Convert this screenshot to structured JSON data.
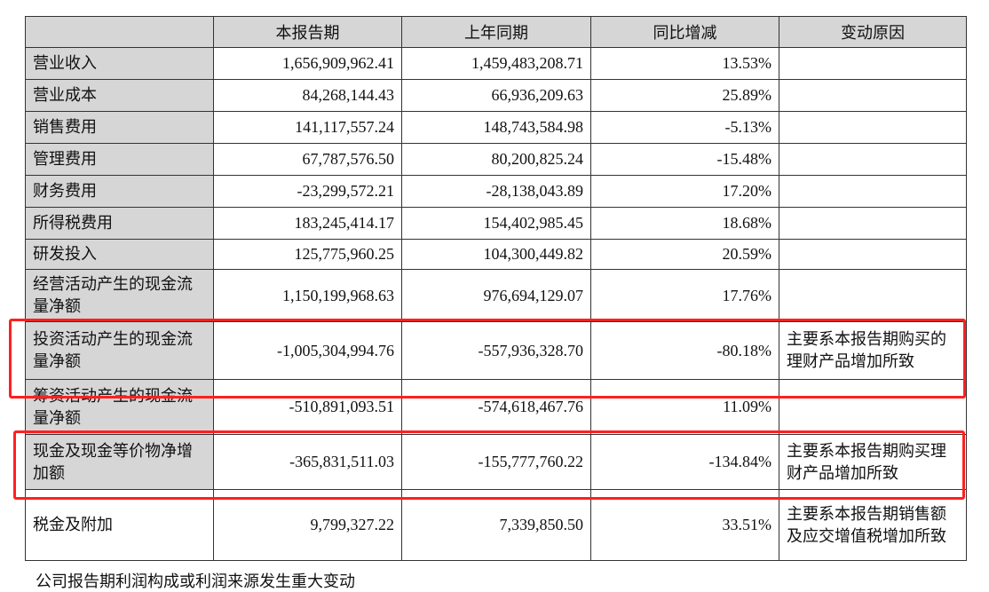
{
  "header": {
    "columns": [
      "",
      "本报告期",
      "上年同期",
      "同比增减",
      "变动原因"
    ]
  },
  "rows": [
    {
      "label": "营业收入",
      "current": "1,656,909,962.41",
      "previous": "1,459,483,208.71",
      "change": "13.53%",
      "reason": ""
    },
    {
      "label": "营业成本",
      "current": "84,268,144.43",
      "previous": "66,936,209.63",
      "change": "25.89%",
      "reason": ""
    },
    {
      "label": "销售费用",
      "current": "141,117,557.24",
      "previous": "148,743,584.98",
      "change": "-5.13%",
      "reason": ""
    },
    {
      "label": "管理费用",
      "current": "67,787,576.50",
      "previous": "80,200,825.24",
      "change": "-15.48%",
      "reason": ""
    },
    {
      "label": "财务费用",
      "current": "-23,299,572.21",
      "previous": "-28,138,043.89",
      "change": "17.20%",
      "reason": ""
    },
    {
      "label": "所得税费用",
      "current": "183,245,414.17",
      "previous": "154,402,985.45",
      "change": "18.68%",
      "reason": ""
    },
    {
      "label": "研发投入",
      "current": "125,775,960.25",
      "previous": "104,300,449.82",
      "change": "20.59%",
      "reason": ""
    },
    {
      "label": "经营活动产生的现金流量净额",
      "current": "1,150,199,968.63",
      "previous": "976,694,129.07",
      "change": "17.76%",
      "reason": ""
    },
    {
      "label": "投资活动产生的现金流量净额",
      "current": "-1,005,304,994.76",
      "previous": "-557,936,328.70",
      "change": "-80.18%",
      "reason": "主要系本报告期购买的理财产品增加所致"
    },
    {
      "label": "筹资活动产生的现金流量净额",
      "current": "-510,891,093.51",
      "previous": "-574,618,467.76",
      "change": "11.09%",
      "reason": ""
    },
    {
      "label": "现金及现金等价物净增加额",
      "current": "-365,831,511.03",
      "previous": "-155,777,760.22",
      "change": "-134.84%",
      "reason": "主要系本报告期购买理财产品增加所致"
    },
    {
      "label": "税金及附加",
      "current": "9,799,327.22",
      "previous": "7,339,850.50",
      "change": "33.51%",
      "reason": "主要系本报告期销售额及应交增值税增加所致"
    }
  ],
  "footer_text": "公司报告期利润构成或利润来源发生重大变动",
  "highlight_color": "#ff2020"
}
